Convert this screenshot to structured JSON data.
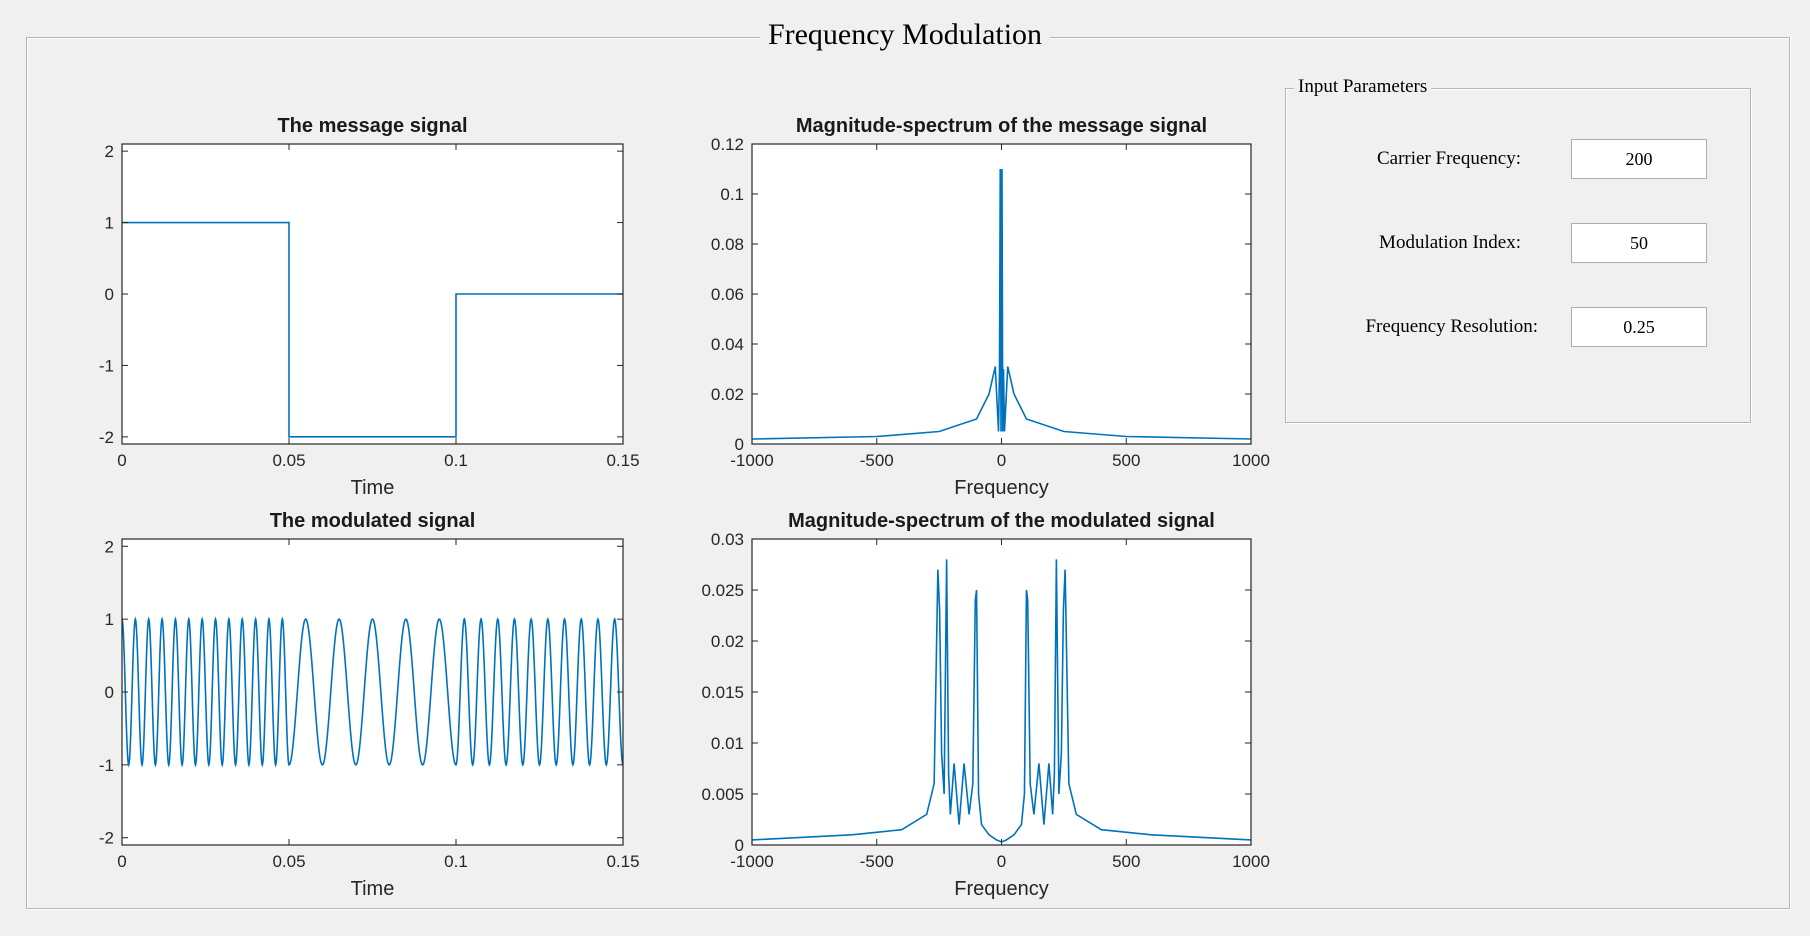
{
  "window": {
    "title": "Frequency Modulation"
  },
  "input_panel": {
    "title": "Input Parameters",
    "params": [
      {
        "label": "Carrier Frequency:",
        "value": "200"
      },
      {
        "label": "Modulation Index:",
        "value": "50"
      },
      {
        "label": "Frequency Resolution:",
        "value": "0.25"
      }
    ]
  },
  "colors": {
    "background": "#f0f0f0",
    "line": "#0072bd",
    "axes": "#262626"
  },
  "chart_data": [
    {
      "type": "line",
      "title": "The message signal",
      "xlabel": "Time",
      "ylabel": "",
      "xlim": [
        0,
        0.15
      ],
      "ylim": [
        -2.1,
        2.1
      ],
      "xticks": [
        "0",
        "0.05",
        "0.1",
        "0.15"
      ],
      "yticks": [
        "-2",
        "-1",
        "0",
        "1",
        "2"
      ],
      "x": [
        0,
        0.05,
        0.05,
        0.1,
        0.1,
        0.15
      ],
      "y": [
        1,
        1,
        -2,
        -2,
        0,
        0
      ]
    },
    {
      "type": "line",
      "title": "Magnitude-spectrum of the message signal",
      "xlabel": "Frequency",
      "ylabel": "",
      "xlim": [
        -1000,
        1000
      ],
      "ylim": [
        0,
        0.12
      ],
      "xticks": [
        "-1000",
        "-500",
        "0",
        "500",
        "1000"
      ],
      "yticks": [
        "0",
        "0.02",
        "0.04",
        "0.06",
        "0.08",
        "0.1",
        "0.12"
      ],
      "x": [
        -1000,
        -500,
        -250,
        -100,
        -50,
        -25,
        -12,
        -8,
        -5,
        -2,
        0,
        2,
        5,
        8,
        12,
        25,
        50,
        100,
        250,
        500,
        1000
      ],
      "y": [
        0.002,
        0.003,
        0.005,
        0.01,
        0.02,
        0.031,
        0.005,
        0.03,
        0.11,
        0.005,
        0.105,
        0.11,
        0.005,
        0.03,
        0.005,
        0.031,
        0.02,
        0.01,
        0.005,
        0.003,
        0.002
      ]
    },
    {
      "type": "line",
      "title": "The modulated signal",
      "xlabel": "Time",
      "ylabel": "",
      "xlim": [
        0,
        0.15
      ],
      "ylim": [
        -2.1,
        2.1
      ],
      "xticks": [
        "0",
        "0.05",
        "0.1",
        "0.15"
      ],
      "yticks": [
        "-2",
        "-1",
        "0",
        "1",
        "2"
      ],
      "segments": [
        {
          "t_start": 0,
          "t_end": 0.05,
          "frequency": 250
        },
        {
          "t_start": 0.05,
          "t_end": 0.1,
          "frequency": 100
        },
        {
          "t_start": 0.1,
          "t_end": 0.15,
          "frequency": 200
        }
      ],
      "amplitude": 1
    },
    {
      "type": "line",
      "title": "Magnitude-spectrum of the modulated signal",
      "xlabel": "Frequency",
      "ylabel": "",
      "xlim": [
        -1000,
        1000
      ],
      "ylim": [
        0,
        0.03
      ],
      "xticks": [
        "-1000",
        "-500",
        "0",
        "500",
        "1000"
      ],
      "yticks": [
        "0",
        "0.005",
        "0.01",
        "0.015",
        "0.02",
        "0.025",
        "0.03"
      ],
      "x": [
        -1000,
        -600,
        -400,
        -300,
        -270,
        -255,
        -248,
        -240,
        -230,
        -220,
        -212,
        -205,
        -190,
        -170,
        -150,
        -130,
        -115,
        -105,
        -100,
        -92,
        -80,
        -50,
        -20,
        0,
        20,
        50,
        80,
        92,
        100,
        105,
        115,
        130,
        150,
        170,
        190,
        205,
        212,
        220,
        230,
        240,
        248,
        255,
        270,
        300,
        400,
        600,
        1000
      ],
      "y": [
        0.0005,
        0.001,
        0.0015,
        0.003,
        0.006,
        0.027,
        0.023,
        0.009,
        0.005,
        0.028,
        0.007,
        0.003,
        0.008,
        0.002,
        0.008,
        0.003,
        0.006,
        0.024,
        0.025,
        0.005,
        0.002,
        0.001,
        0.0005,
        0.0003,
        0.0005,
        0.001,
        0.002,
        0.005,
        0.025,
        0.024,
        0.006,
        0.003,
        0.008,
        0.002,
        0.008,
        0.003,
        0.007,
        0.028,
        0.005,
        0.009,
        0.023,
        0.027,
        0.006,
        0.003,
        0.0015,
        0.001,
        0.0005
      ]
    }
  ]
}
